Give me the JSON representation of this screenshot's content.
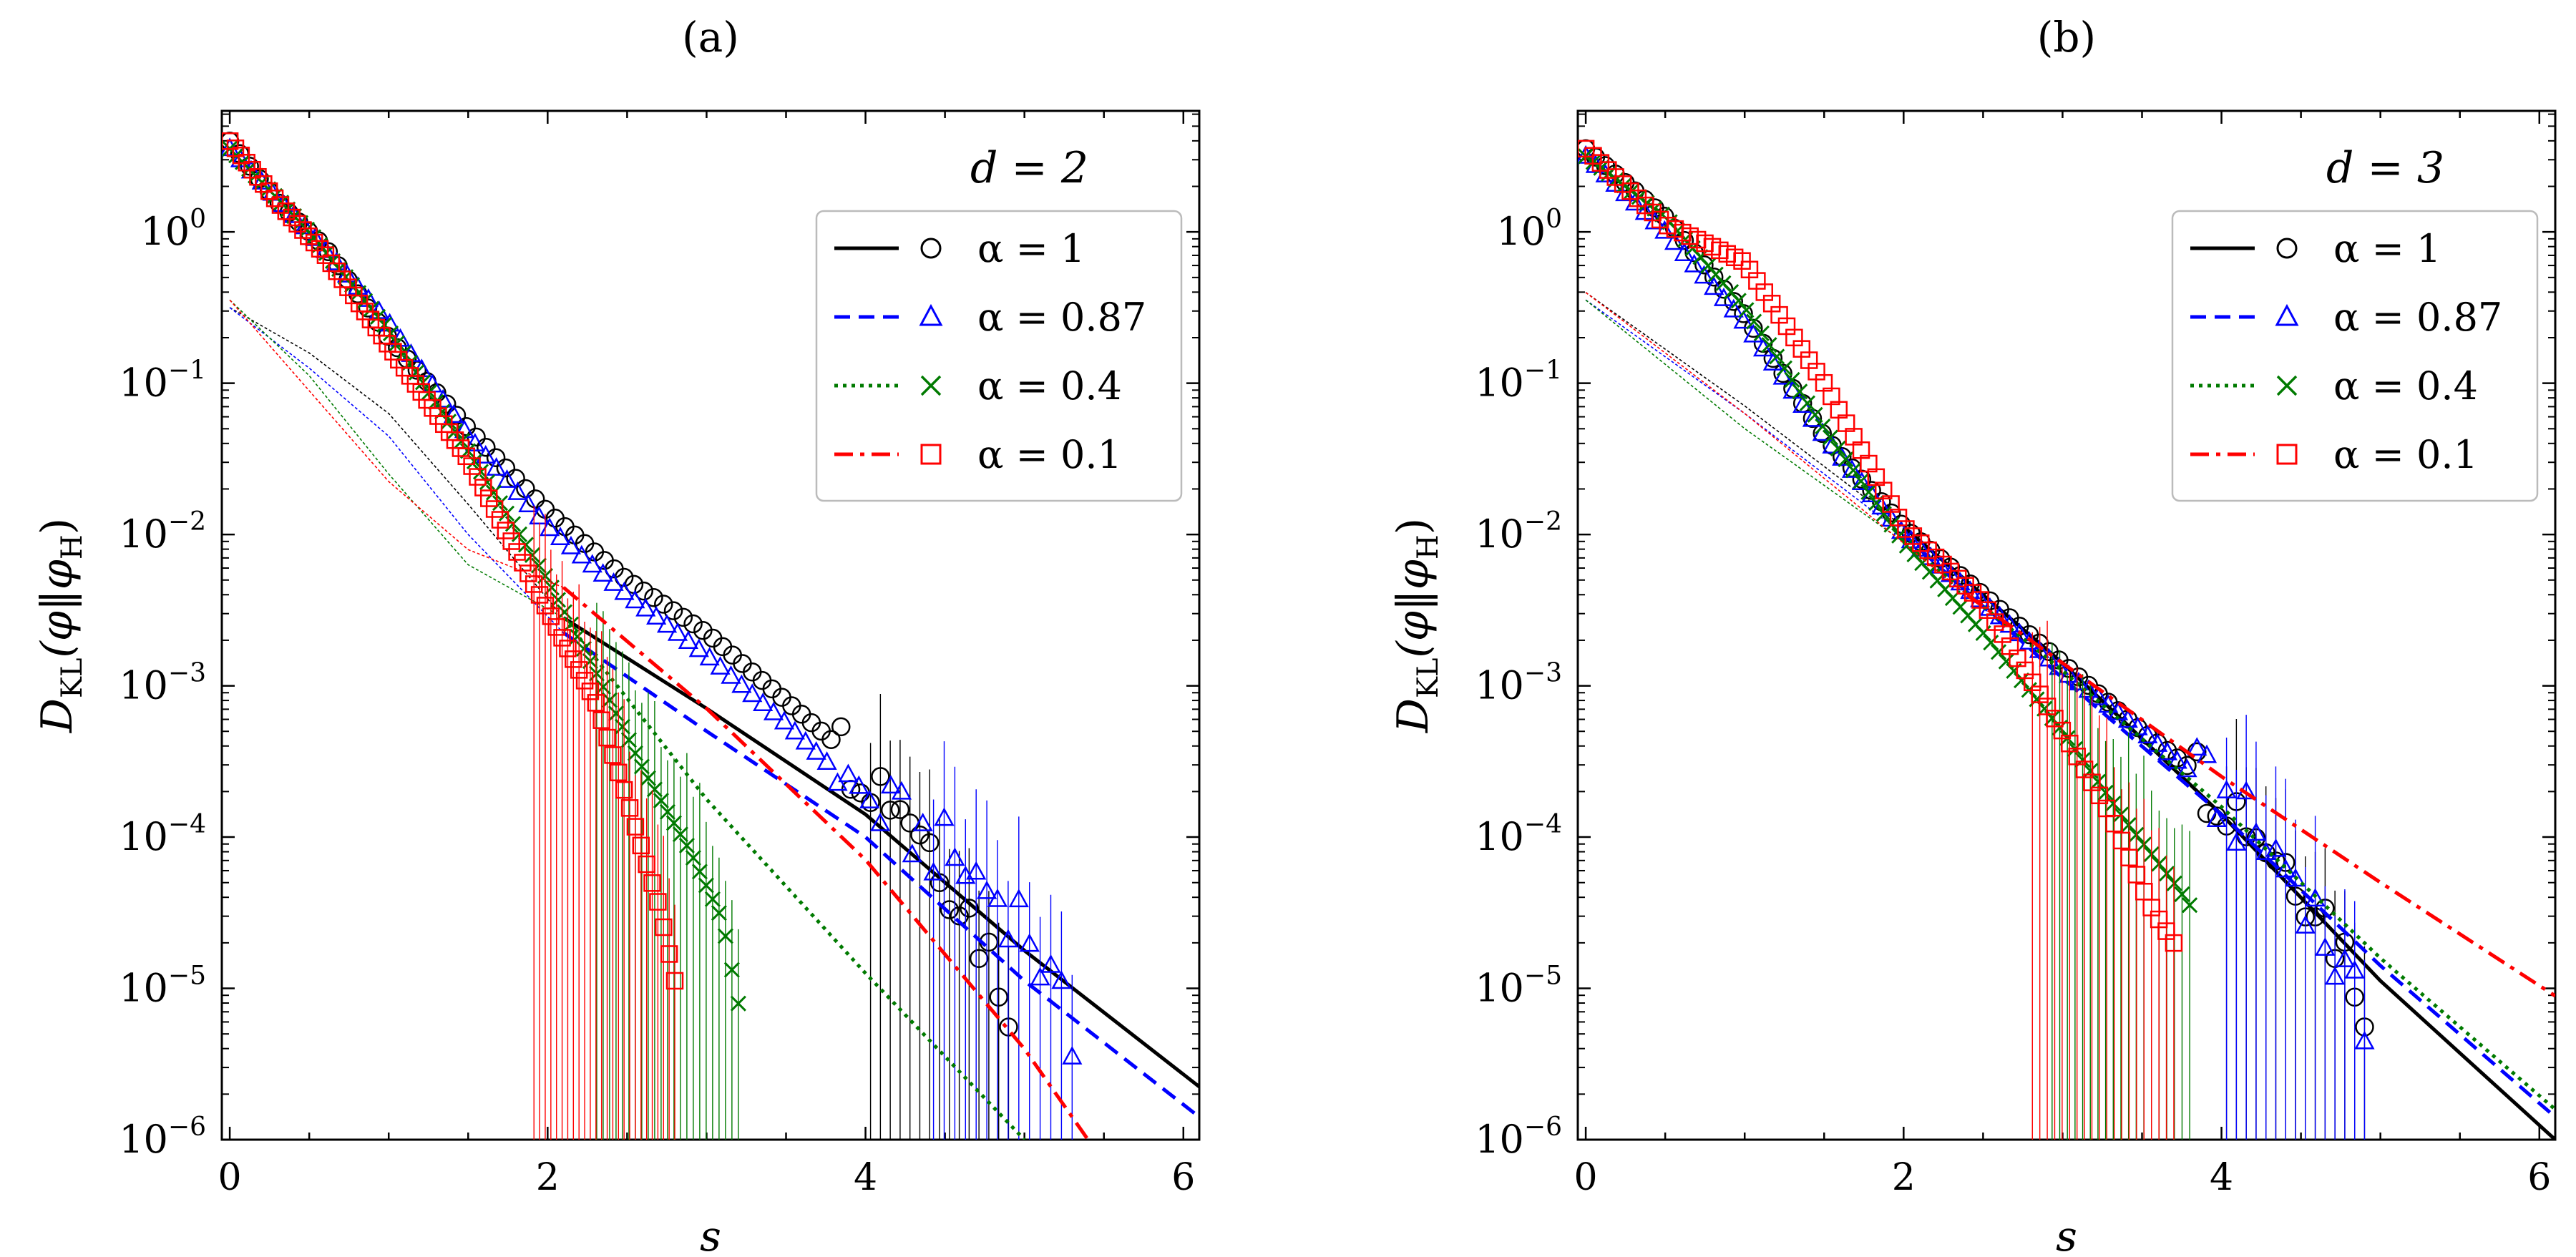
{
  "figure": {
    "ylabel_main": "D",
    "ylabel_sub": "KL",
    "ylabel_args": "(φ‖φ",
    "ylabel_args_sub": "H",
    "ylabel_close": ")"
  },
  "chart_data": [
    {
      "type": "line",
      "panel_label": "(a)",
      "title": "d = 2",
      "xlabel": "s",
      "xlim": [
        -0.05,
        6.1
      ],
      "ylim_exponent": [
        -6,
        0.8
      ],
      "yscale": "log",
      "xticks": [
        0,
        2,
        4,
        6
      ],
      "yticks": [
        {
          "base": "10",
          "exp": "0"
        },
        {
          "base": "10",
          "exp": "−1"
        },
        {
          "base": "10",
          "exp": "−2"
        },
        {
          "base": "10",
          "exp": "−3"
        },
        {
          "base": "10",
          "exp": "−4"
        },
        {
          "base": "10",
          "exp": "−5"
        },
        {
          "base": "10",
          "exp": "−6"
        }
      ],
      "ytick_exponents": [
        0,
        -1,
        -2,
        -3,
        -4,
        -5,
        -6
      ],
      "legend_position": "top-right",
      "series": [
        {
          "name": "α = 1",
          "color": "#000000",
          "marker": "circle",
          "dash": "solid",
          "fit_x": [
            2.1,
            3,
            4,
            5,
            6.1
          ],
          "fit_log10": [
            -2.55,
            -3.15,
            -3.85,
            -4.75,
            -5.65
          ],
          "thin_x": [
            0,
            0.5,
            1,
            1.5,
            2.1
          ],
          "thin_log10": [
            -0.5,
            -0.8,
            -1.2,
            -1.8,
            -2.55
          ],
          "pts_x": [
            0,
            0.3,
            0.6,
            1,
            1.5,
            2,
            2.5,
            3,
            3.5,
            4,
            4.3,
            4.6,
            4.9
          ],
          "pts_log10": [
            0.6,
            0.2,
            -0.1,
            -0.7,
            -1.3,
            -1.85,
            -2.3,
            -2.65,
            -3.1,
            -3.55,
            -3.85,
            -4.4,
            -5.05
          ]
        },
        {
          "name": "α = 0.87",
          "color": "#0000ff",
          "marker": "triangle",
          "dash": "dashed",
          "fit_x": [
            2.1,
            3,
            4,
            5,
            6.1
          ],
          "fit_log10": [
            -2.65,
            -3.3,
            -4,
            -4.95,
            -5.85
          ],
          "thin_x": [
            0,
            0.5,
            1,
            1.5,
            2.1
          ],
          "thin_log10": [
            -0.5,
            -0.9,
            -1.35,
            -2,
            -2.65
          ],
          "pts_x": [
            0,
            0.5,
            1,
            1.5,
            2,
            2.5,
            3,
            3.5,
            4,
            4.5,
            5,
            5.3
          ],
          "pts_log10": [
            0.55,
            0.0,
            -0.6,
            -1.35,
            -1.95,
            -2.4,
            -2.8,
            -3.25,
            -3.75,
            -4.1,
            -4.55,
            -5.35
          ]
        },
        {
          "name": "α = 0.4",
          "color": "#007a00",
          "marker": "cross",
          "dash": "dotted",
          "fit_x": [
            2.1,
            3,
            4,
            5
          ],
          "fit_log10": [
            -2.55,
            -3.75,
            -4.9,
            -6.0
          ],
          "thin_x": [
            0,
            0.5,
            1,
            1.5,
            2.1
          ],
          "thin_log10": [
            -0.45,
            -0.95,
            -1.6,
            -2.2,
            -2.55
          ],
          "pts_x": [
            0,
            0.5,
            1,
            1.5,
            2,
            2.3,
            2.6,
            2.9,
            3.1,
            3.2
          ],
          "pts_log10": [
            0.55,
            0.0,
            -0.65,
            -1.45,
            -2.3,
            -2.9,
            -3.55,
            -4.1,
            -4.55,
            -5.1
          ]
        },
        {
          "name": "α = 0.1",
          "color": "#ff0000",
          "marker": "square",
          "dash": "dashdot",
          "fit_x": [
            2.1,
            3,
            4,
            5,
            5.4
          ],
          "fit_log10": [
            -2.35,
            -3.15,
            -4.15,
            -5.4,
            -6.0
          ],
          "thin_x": [
            0,
            0.5,
            1,
            1.5,
            2.1
          ],
          "thin_log10": [
            -0.45,
            -1.05,
            -1.65,
            -2.1,
            -2.35
          ],
          "pts_x": [
            0,
            0.3,
            0.6,
            1,
            1.5,
            2,
            2.3,
            2.5,
            2.7,
            2.8
          ],
          "pts_log10": [
            0.6,
            0.2,
            -0.15,
            -0.75,
            -1.5,
            -2.5,
            -3.1,
            -3.75,
            -4.45,
            -4.95
          ]
        }
      ]
    },
    {
      "type": "line",
      "panel_label": "(b)",
      "title": "d = 3",
      "xlabel": "s",
      "xlim": [
        -0.05,
        6.1
      ],
      "ylim_exponent": [
        -6,
        0.8
      ],
      "yscale": "log",
      "xticks": [
        0,
        2,
        4,
        6
      ],
      "yticks": [
        {
          "base": "10",
          "exp": "0"
        },
        {
          "base": "10",
          "exp": "−1"
        },
        {
          "base": "10",
          "exp": "−2"
        },
        {
          "base": "10",
          "exp": "−3"
        },
        {
          "base": "10",
          "exp": "−4"
        },
        {
          "base": "10",
          "exp": "−5"
        },
        {
          "base": "10",
          "exp": "−6"
        }
      ],
      "ytick_exponents": [
        0,
        -1,
        -2,
        -3,
        -4,
        -5,
        -6
      ],
      "legend_position": "top-right",
      "series": [
        {
          "name": "α = 1",
          "color": "#000000",
          "marker": "circle",
          "dash": "solid",
          "fit_x": [
            2.0,
            3,
            4,
            5,
            6.1
          ],
          "fit_log10": [
            -1.95,
            -2.85,
            -3.85,
            -4.95,
            -6.0
          ],
          "thin_x": [
            0,
            1,
            2.0
          ],
          "thin_log10": [
            -0.4,
            -1.15,
            -1.95
          ],
          "pts_x": [
            0,
            0.5,
            1,
            1.5,
            2,
            2.5,
            3,
            3.5,
            4,
            4.3,
            4.6,
            4.9
          ],
          "pts_log10": [
            0.55,
            0.1,
            -0.55,
            -1.35,
            -1.95,
            -2.4,
            -2.85,
            -3.3,
            -3.7,
            -4.05,
            -4.4,
            -5.05
          ]
        },
        {
          "name": "α = 0.87",
          "color": "#0000ff",
          "marker": "triangle",
          "dash": "dashed",
          "fit_x": [
            2.0,
            3,
            4,
            5,
            6.1
          ],
          "fit_log10": [
            -2.0,
            -2.95,
            -3.85,
            -4.85,
            -5.85
          ],
          "thin_x": [
            0,
            1,
            2.0
          ],
          "thin_log10": [
            -0.45,
            -1.2,
            -2.0
          ],
          "pts_x": [
            0,
            0.5,
            1,
            1.5,
            2,
            2.5,
            3,
            3.5,
            4,
            4.5,
            4.9
          ],
          "pts_log10": [
            0.5,
            0.0,
            -0.6,
            -1.35,
            -2.0,
            -2.45,
            -2.9,
            -3.3,
            -3.75,
            -4.3,
            -5.25
          ]
        },
        {
          "name": "α = 0.4",
          "color": "#007a00",
          "marker": "cross",
          "dash": "dotted",
          "fit_x": [
            2.0,
            3,
            4,
            5,
            6.1
          ],
          "fit_log10": [
            -2.05,
            -2.9,
            -3.8,
            -4.8,
            -5.8
          ],
          "thin_x": [
            0,
            1,
            2.0
          ],
          "thin_log10": [
            -0.45,
            -1.3,
            -2.05
          ],
          "pts_x": [
            0,
            0.5,
            1,
            1.5,
            2,
            2.5,
            3,
            3.4,
            3.7,
            3.8
          ],
          "pts_log10": [
            0.5,
            0.1,
            -0.5,
            -1.3,
            -2.05,
            -2.65,
            -3.3,
            -3.9,
            -4.3,
            -4.45
          ]
        },
        {
          "name": "α = 0.1",
          "color": "#ff0000",
          "marker": "square",
          "dash": "dashdot",
          "fit_x": [
            2.4,
            3,
            4,
            5,
            6.1
          ],
          "fit_log10": [
            -2.4,
            -2.85,
            -3.6,
            -4.3,
            -5.05
          ],
          "thin_x": [
            0,
            1,
            2.4
          ],
          "thin_log10": [
            -0.4,
            -1.2,
            -2.4
          ],
          "pts_x": [
            0,
            0.5,
            1,
            1.5,
            2,
            2.5,
            3,
            3.3,
            3.55,
            3.7
          ],
          "pts_log10": [
            0.55,
            0.05,
            -0.2,
            -1.0,
            -1.95,
            -2.45,
            -3.3,
            -3.85,
            -4.45,
            -4.7
          ]
        }
      ]
    }
  ]
}
